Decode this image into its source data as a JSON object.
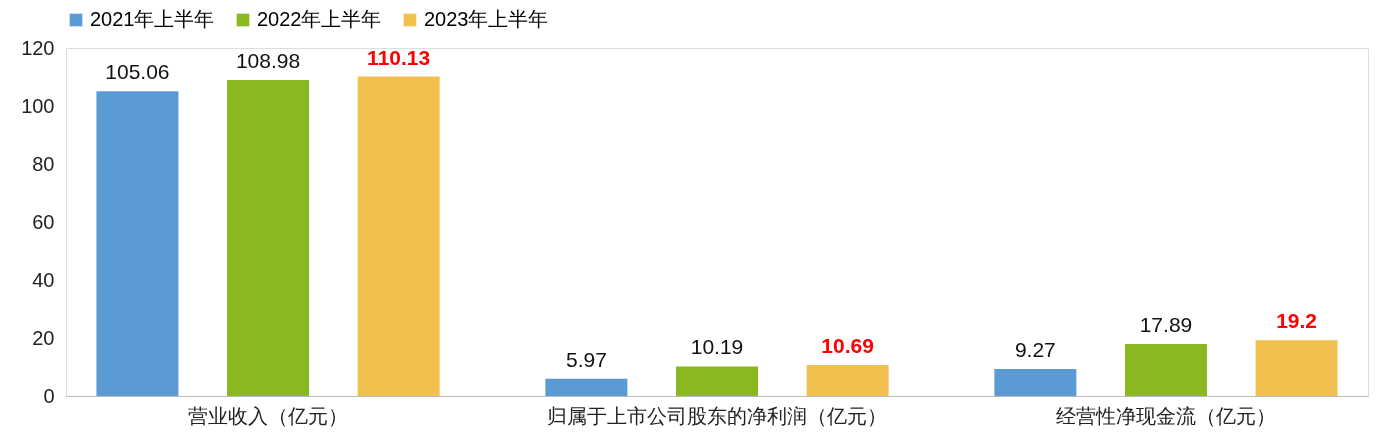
{
  "chart_data": {
    "type": "bar",
    "categories": [
      "营业收入（亿元）",
      "归属于上市公司股东的净利润（亿元）",
      "经营性净现金流（亿元）"
    ],
    "series": [
      {
        "name": "2021年上半年",
        "color": "#5b9bd5",
        "values": [
          105.06,
          5.97,
          9.27
        ]
      },
      {
        "name": "2022年上半年",
        "color": "#8ab81e",
        "values": [
          108.98,
          10.19,
          17.89
        ]
      },
      {
        "name": "2023年上半年",
        "color": "#f2c04e",
        "values": [
          110.13,
          10.69,
          19.2
        ]
      }
    ],
    "ylim": [
      0,
      120
    ],
    "yticks": [
      0,
      20,
      40,
      60,
      80,
      100,
      120
    ],
    "data_labels": true,
    "grid": false,
    "legend": "top"
  }
}
